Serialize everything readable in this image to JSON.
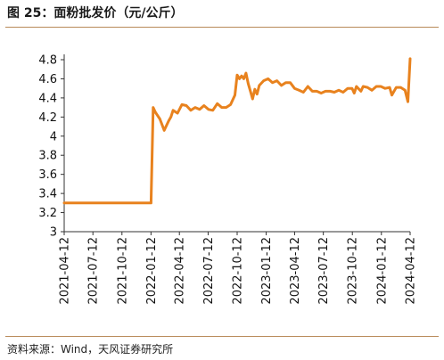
{
  "title": "图 25：面粉批发价（元/公斤）",
  "source": "资料来源：Wind，天风证券研究所",
  "chart_data": {
    "type": "line",
    "xlabel": "",
    "ylabel": "",
    "ylim": [
      3,
      4.8
    ],
    "y_ticks": [
      "3",
      "3.2",
      "3.4",
      "3.6",
      "3.8",
      "4",
      "4.2",
      "4.4",
      "4.6",
      "4.8"
    ],
    "x_tick_labels": [
      "2021-04-12",
      "2021-07-12",
      "2021-10-12",
      "2022-01-12",
      "2022-04-12",
      "2022-07-12",
      "2022-10-12",
      "2023-01-12",
      "2023-04-12",
      "2023-07-12",
      "2023-10-12",
      "2024-01-12",
      "2024-04-12"
    ],
    "grid": false,
    "line_color": "#e8821e",
    "series": [
      {
        "x": [
          "2021-04-12",
          "2021-07-12",
          "2021-10-12",
          "2022-01-12",
          "2022-01-19",
          "2022-01-26",
          "2022-02-09",
          "2022-02-23",
          "2022-03-09",
          "2022-03-16",
          "2022-03-23",
          "2022-04-06",
          "2022-04-20",
          "2022-05-04",
          "2022-05-18",
          "2022-06-01",
          "2022-06-15",
          "2022-06-29",
          "2022-07-13",
          "2022-07-27",
          "2022-08-10",
          "2022-08-24",
          "2022-09-07",
          "2022-09-21",
          "2022-10-05",
          "2022-10-12",
          "2022-10-19",
          "2022-10-26",
          "2022-11-02",
          "2022-11-09",
          "2022-11-16",
          "2022-11-23",
          "2022-11-30",
          "2022-12-07",
          "2022-12-14",
          "2022-12-21",
          "2023-01-04",
          "2023-01-18",
          "2023-02-01",
          "2023-02-15",
          "2023-03-01",
          "2023-03-15",
          "2023-03-29",
          "2023-04-12",
          "2023-04-26",
          "2023-05-10",
          "2023-05-24",
          "2023-06-07",
          "2023-06-21",
          "2023-07-05",
          "2023-07-19",
          "2023-08-02",
          "2023-08-16",
          "2023-08-30",
          "2023-09-13",
          "2023-09-27",
          "2023-10-11",
          "2023-10-18",
          "2023-10-25",
          "2023-11-08",
          "2023-11-15",
          "2023-11-29",
          "2023-12-13",
          "2023-12-27",
          "2024-01-10",
          "2024-01-24",
          "2024-02-07",
          "2024-02-14",
          "2024-02-28",
          "2024-03-13",
          "2024-03-27",
          "2024-04-05",
          "2024-04-12"
        ],
        "values": [
          3.3,
          3.3,
          3.3,
          3.3,
          4.3,
          4.25,
          4.18,
          4.06,
          4.16,
          4.2,
          4.27,
          4.24,
          4.33,
          4.32,
          4.27,
          4.3,
          4.28,
          4.32,
          4.28,
          4.27,
          4.34,
          4.3,
          4.3,
          4.33,
          4.43,
          4.64,
          4.6,
          4.63,
          4.6,
          4.66,
          4.55,
          4.47,
          4.39,
          4.49,
          4.44,
          4.53,
          4.58,
          4.6,
          4.56,
          4.58,
          4.53,
          4.56,
          4.56,
          4.5,
          4.48,
          4.46,
          4.52,
          4.47,
          4.47,
          4.45,
          4.47,
          4.47,
          4.46,
          4.48,
          4.46,
          4.5,
          4.5,
          4.45,
          4.52,
          4.47,
          4.52,
          4.51,
          4.48,
          4.52,
          4.52,
          4.5,
          4.51,
          4.43,
          4.51,
          4.51,
          4.48,
          4.36,
          4.81
        ]
      }
    ]
  }
}
